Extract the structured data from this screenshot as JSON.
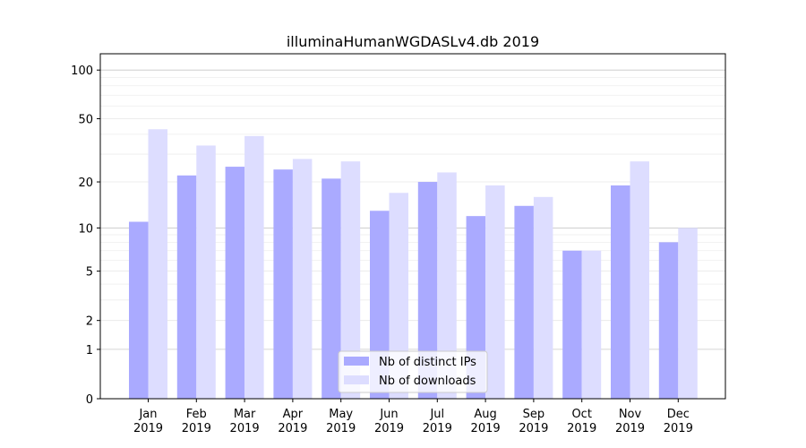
{
  "chart_data": {
    "type": "bar",
    "title": "illuminaHumanWGDASLv4.db 2019",
    "xlabel": "",
    "ylabel": "",
    "yscale": "log10(1+y)",
    "ylim": [
      0,
      130
    ],
    "yticks": [
      0,
      1,
      2,
      5,
      10,
      20,
      50,
      100
    ],
    "grid": true,
    "legend_position": "bottom-center",
    "categories": [
      "Jan\n2019",
      "Feb\n2019",
      "Mar\n2019",
      "Apr\n2019",
      "May\n2019",
      "Jun\n2019",
      "Jul\n2019",
      "Aug\n2019",
      "Sep\n2019",
      "Oct\n2019",
      "Nov\n2019",
      "Dec\n2019"
    ],
    "series": [
      {
        "name": "Nb of distinct IPs",
        "color": "#aaaaff",
        "values": [
          11,
          22,
          25,
          24,
          21,
          13,
          20,
          12,
          14,
          7,
          19,
          8
        ]
      },
      {
        "name": "Nb of downloads",
        "color": "#ddddff",
        "values": [
          43,
          34,
          39,
          28,
          27,
          17,
          23,
          19,
          16,
          7,
          27,
          10
        ]
      }
    ]
  }
}
